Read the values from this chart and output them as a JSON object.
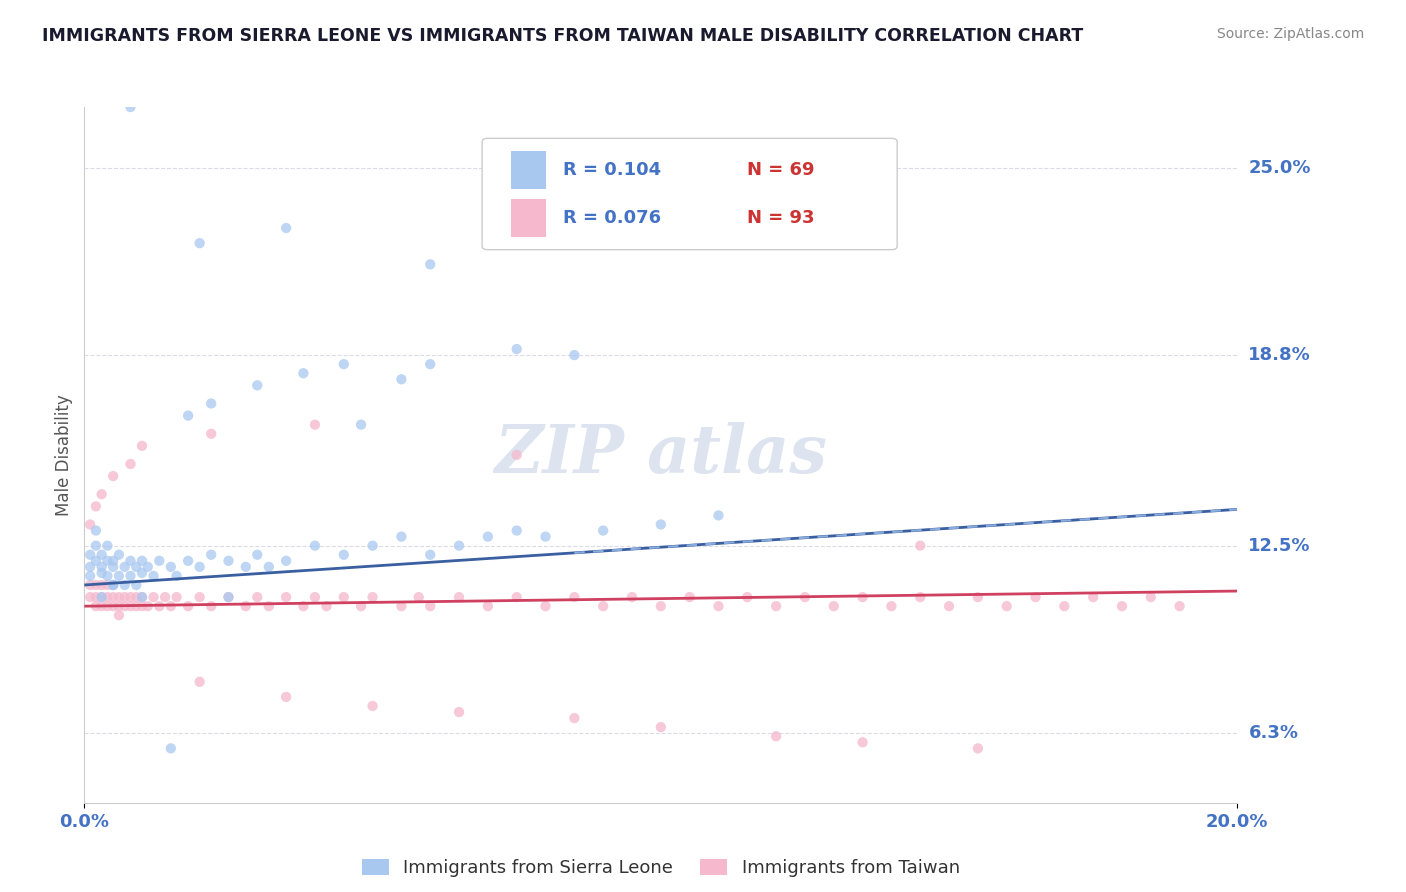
{
  "title": "IMMIGRANTS FROM SIERRA LEONE VS IMMIGRANTS FROM TAIWAN MALE DISABILITY CORRELATION CHART",
  "source": "Source: ZipAtlas.com",
  "ylabel": "Male Disability",
  "ytick_labels": [
    "25.0%",
    "18.8%",
    "12.5%",
    "6.3%"
  ],
  "ytick_values": [
    0.25,
    0.188,
    0.125,
    0.063
  ],
  "color_blue": "#a8c8f0",
  "color_pink": "#f5b8cc",
  "line_blue": "#3a5fa0",
  "line_pink": "#d04060",
  "label_color": "#4472c4",
  "red_color": "#cc3333",
  "xlim": [
    0.0,
    0.2
  ],
  "ylim": [
    0.04,
    0.27
  ],
  "sierra_leone_x": [
    0.001,
    0.001,
    0.001,
    0.002,
    0.002,
    0.002,
    0.003,
    0.003,
    0.003,
    0.004,
    0.004,
    0.004,
    0.005,
    0.005,
    0.005,
    0.006,
    0.006,
    0.007,
    0.007,
    0.008,
    0.008,
    0.009,
    0.009,
    0.01,
    0.01,
    0.011,
    0.012,
    0.013,
    0.015,
    0.016,
    0.018,
    0.02,
    0.022,
    0.025,
    0.028,
    0.03,
    0.032,
    0.035,
    0.04,
    0.045,
    0.05,
    0.055,
    0.06,
    0.065,
    0.07,
    0.075,
    0.08,
    0.09,
    0.1,
    0.11,
    0.018,
    0.022,
    0.03,
    0.038,
    0.045,
    0.055,
    0.06,
    0.075,
    0.085,
    0.048,
    0.06,
    0.02,
    0.035,
    0.008,
    0.015,
    0.01,
    0.025,
    0.005,
    0.003
  ],
  "sierra_leone_y": [
    0.115,
    0.118,
    0.122,
    0.12,
    0.125,
    0.13,
    0.118,
    0.122,
    0.116,
    0.12,
    0.115,
    0.125,
    0.118,
    0.112,
    0.12,
    0.115,
    0.122,
    0.118,
    0.112,
    0.12,
    0.115,
    0.118,
    0.112,
    0.116,
    0.12,
    0.118,
    0.115,
    0.12,
    0.118,
    0.115,
    0.12,
    0.118,
    0.122,
    0.12,
    0.118,
    0.122,
    0.118,
    0.12,
    0.125,
    0.122,
    0.125,
    0.128,
    0.122,
    0.125,
    0.128,
    0.13,
    0.128,
    0.13,
    0.132,
    0.135,
    0.168,
    0.172,
    0.178,
    0.182,
    0.185,
    0.18,
    0.185,
    0.19,
    0.188,
    0.165,
    0.218,
    0.225,
    0.23,
    0.27,
    0.058,
    0.108,
    0.108,
    0.112,
    0.108
  ],
  "taiwan_x": [
    0.001,
    0.001,
    0.002,
    0.002,
    0.002,
    0.003,
    0.003,
    0.003,
    0.004,
    0.004,
    0.004,
    0.005,
    0.005,
    0.005,
    0.006,
    0.006,
    0.006,
    0.007,
    0.007,
    0.008,
    0.008,
    0.009,
    0.009,
    0.01,
    0.01,
    0.011,
    0.012,
    0.013,
    0.014,
    0.015,
    0.016,
    0.018,
    0.02,
    0.022,
    0.025,
    0.028,
    0.03,
    0.032,
    0.035,
    0.038,
    0.04,
    0.042,
    0.045,
    0.048,
    0.05,
    0.055,
    0.058,
    0.06,
    0.065,
    0.07,
    0.075,
    0.08,
    0.085,
    0.09,
    0.095,
    0.1,
    0.105,
    0.11,
    0.115,
    0.12,
    0.125,
    0.13,
    0.135,
    0.14,
    0.145,
    0.15,
    0.155,
    0.16,
    0.165,
    0.17,
    0.175,
    0.18,
    0.185,
    0.19,
    0.02,
    0.035,
    0.05,
    0.065,
    0.085,
    0.1,
    0.12,
    0.135,
    0.155,
    0.075,
    0.04,
    0.022,
    0.01,
    0.008,
    0.005,
    0.003,
    0.002,
    0.001,
    0.145
  ],
  "taiwan_y": [
    0.108,
    0.112,
    0.105,
    0.108,
    0.112,
    0.105,
    0.108,
    0.112,
    0.105,
    0.108,
    0.112,
    0.105,
    0.108,
    0.112,
    0.105,
    0.108,
    0.102,
    0.105,
    0.108,
    0.105,
    0.108,
    0.105,
    0.108,
    0.105,
    0.108,
    0.105,
    0.108,
    0.105,
    0.108,
    0.105,
    0.108,
    0.105,
    0.108,
    0.105,
    0.108,
    0.105,
    0.108,
    0.105,
    0.108,
    0.105,
    0.108,
    0.105,
    0.108,
    0.105,
    0.108,
    0.105,
    0.108,
    0.105,
    0.108,
    0.105,
    0.108,
    0.105,
    0.108,
    0.105,
    0.108,
    0.105,
    0.108,
    0.105,
    0.108,
    0.105,
    0.108,
    0.105,
    0.108,
    0.105,
    0.108,
    0.105,
    0.108,
    0.105,
    0.108,
    0.105,
    0.108,
    0.105,
    0.108,
    0.105,
    0.08,
    0.075,
    0.072,
    0.07,
    0.068,
    0.065,
    0.062,
    0.06,
    0.058,
    0.155,
    0.165,
    0.162,
    0.158,
    0.152,
    0.148,
    0.142,
    0.138,
    0.132,
    0.125
  ]
}
